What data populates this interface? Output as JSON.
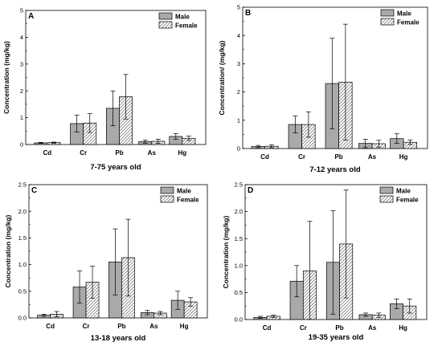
{
  "chart_data": [
    {
      "panel": "A",
      "type": "bar",
      "title": "",
      "xlabel": "7-75 years old",
      "ylabel": "Concentration (mg/kg)",
      "ylim": [
        0,
        5
      ],
      "yticks": [
        "0",
        "1",
        "2",
        "3",
        "4",
        "5"
      ],
      "categories": [
        "Cd",
        "Cr",
        "Pb",
        "As",
        "Hg"
      ],
      "series": [
        {
          "name": "Male",
          "values": [
            0.06,
            0.78,
            1.35,
            0.11,
            0.3
          ],
          "errors": [
            0.02,
            0.32,
            0.65,
            0.06,
            0.11
          ]
        },
        {
          "name": "Female",
          "values": [
            0.07,
            0.8,
            1.78,
            0.12,
            0.23
          ],
          "errors": [
            0.02,
            0.35,
            0.83,
            0.08,
            0.08
          ]
        }
      ],
      "legend_position": "top-right"
    },
    {
      "panel": "B",
      "type": "bar",
      "title": "",
      "xlabel": "7-12 years old",
      "ylabel": "Concentration/ (mg/kg)",
      "ylim": [
        0,
        5
      ],
      "yticks": [
        "0",
        "1",
        "2",
        "3",
        "4",
        "5"
      ],
      "categories": [
        "Cd",
        "Cr",
        "Pb",
        "As",
        "Hg"
      ],
      "series": [
        {
          "name": "Male",
          "values": [
            0.07,
            0.85,
            2.3,
            0.18,
            0.35
          ],
          "errors": [
            0.04,
            0.3,
            1.6,
            0.15,
            0.17
          ]
        },
        {
          "name": "Female",
          "values": [
            0.08,
            0.85,
            2.35,
            0.17,
            0.22
          ],
          "errors": [
            0.05,
            0.45,
            2.05,
            0.12,
            0.08
          ]
        }
      ],
      "legend_position": "top-right"
    },
    {
      "panel": "C",
      "type": "bar",
      "title": "",
      "xlabel": "13-18 years old",
      "ylabel": "Concentration (mg/kg)",
      "ylim": [
        0,
        2.5
      ],
      "yticks": [
        "0.0",
        "0.5",
        "1.0",
        "1.5",
        "2.0",
        "2.5"
      ],
      "categories": [
        "Cd",
        "Cr",
        "Pb",
        "As",
        "Hg"
      ],
      "series": [
        {
          "name": "Male",
          "values": [
            0.05,
            0.58,
            1.05,
            0.1,
            0.33
          ],
          "errors": [
            0.02,
            0.3,
            0.62,
            0.04,
            0.17
          ]
        },
        {
          "name": "Female",
          "values": [
            0.07,
            0.67,
            1.13,
            0.09,
            0.3
          ],
          "errors": [
            0.05,
            0.3,
            0.72,
            0.03,
            0.08
          ]
        }
      ],
      "legend_position": "top-right"
    },
    {
      "panel": "D",
      "type": "bar",
      "title": "",
      "xlabel": "19-35 years old",
      "ylabel": "Concentration (mg/kg)",
      "ylim": [
        0,
        2.5
      ],
      "yticks": [
        "0.0",
        "0.5",
        "1.0",
        "1.5",
        "2.0",
        "2.5"
      ],
      "categories": [
        "Cd",
        "Cr",
        "Pb",
        "As",
        "Hg"
      ],
      "series": [
        {
          "name": "Male",
          "values": [
            0.04,
            0.71,
            1.06,
            0.09,
            0.29
          ],
          "errors": [
            0.02,
            0.29,
            0.96,
            0.03,
            0.09
          ]
        },
        {
          "name": "Female",
          "values": [
            0.06,
            0.9,
            1.4,
            0.08,
            0.25
          ],
          "errors": [
            0.02,
            0.92,
            1.0,
            0.04,
            0.13
          ]
        }
      ],
      "legend_position": "top-right"
    }
  ],
  "colors": {
    "male_fill": "#a9a9a9",
    "female_fill": "#ffffff",
    "female_hatch": "#666666",
    "axis": "#000000"
  }
}
